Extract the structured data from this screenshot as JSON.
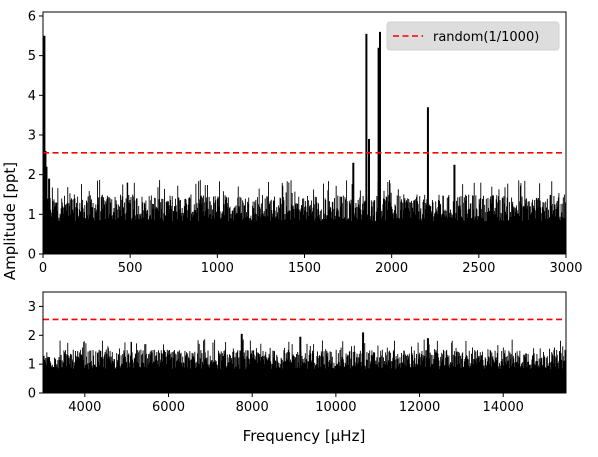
{
  "chart_data": [
    {
      "type": "line",
      "panel": "top",
      "xlim": [
        0,
        3000
      ],
      "ylim": [
        0,
        6.1
      ],
      "xticks": [
        0,
        500,
        1000,
        1500,
        2000,
        2500,
        3000
      ],
      "yticks": [
        0,
        1,
        2,
        3,
        4,
        5,
        6
      ],
      "xlabel": "",
      "ylabel": "Amplitude [ppt]",
      "threshold": {
        "name": "random(1/1000)",
        "value": 2.55,
        "color": "#ff0000",
        "style": "dashed"
      },
      "legend": {
        "position": "top-right"
      },
      "grid": false,
      "series": [
        {
          "color": "#000000",
          "baseline_noise_max": 1.5,
          "peaks": [
            {
              "x": 8,
              "y": 5.5
            },
            {
              "x": 14,
              "y": 2.6
            },
            {
              "x": 20,
              "y": 2.2
            },
            {
              "x": 35,
              "y": 1.9
            },
            {
              "x": 1780,
              "y": 2.3
            },
            {
              "x": 1855,
              "y": 5.55
            },
            {
              "x": 1870,
              "y": 2.9
            },
            {
              "x": 1925,
              "y": 5.2
            },
            {
              "x": 1933,
              "y": 5.6
            },
            {
              "x": 2208,
              "y": 3.7
            },
            {
              "x": 2360,
              "y": 2.25
            }
          ]
        }
      ]
    },
    {
      "type": "line",
      "panel": "bottom",
      "xlim": [
        3000,
        15500
      ],
      "ylim": [
        0,
        3.5
      ],
      "xticks": [
        4000,
        6000,
        8000,
        10000,
        12000,
        14000
      ],
      "yticks": [
        0,
        1,
        2,
        3
      ],
      "xlabel": "Frequency [μHz]",
      "ylabel": "",
      "threshold": {
        "value": 2.55,
        "color": "#ff0000",
        "style": "dashed"
      },
      "grid": false,
      "series": [
        {
          "color": "#000000",
          "baseline_noise_max": 1.5,
          "peaks": [
            {
              "x": 7750,
              "y": 2.05
            },
            {
              "x": 9150,
              "y": 1.95
            },
            {
              "x": 10650,
              "y": 2.1
            },
            {
              "x": 12200,
              "y": 1.9
            }
          ]
        }
      ]
    }
  ]
}
